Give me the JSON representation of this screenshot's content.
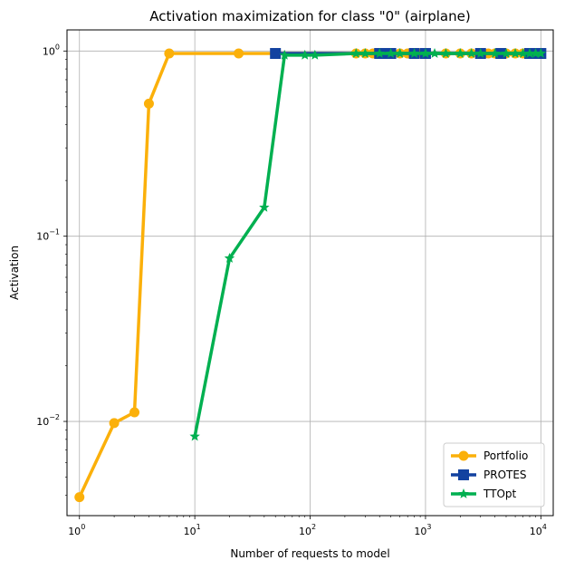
{
  "chart_data": {
    "type": "line",
    "title": "Activation maximization for class \"0\" (airplane)",
    "xlabel": "Number of requests to model",
    "ylabel": "Activation",
    "xscale": "log",
    "yscale": "log",
    "xlim": [
      0.78,
      12800
    ],
    "ylim": [
      0.0031,
      1.3
    ],
    "grid": true,
    "legend_position": "bottom-right",
    "x_ticks": [
      {
        "value": 1,
        "base": "10",
        "exp": "0"
      },
      {
        "value": 10,
        "base": "10",
        "exp": "1"
      },
      {
        "value": 100,
        "base": "10",
        "exp": "2"
      },
      {
        "value": 1000,
        "base": "10",
        "exp": "3"
      },
      {
        "value": 10000,
        "base": "10",
        "exp": "4"
      }
    ],
    "y_ticks": [
      {
        "value": 0.01,
        "base": "10",
        "exp": "−2"
      },
      {
        "value": 0.1,
        "base": "10",
        "exp": "−1"
      },
      {
        "value": 1,
        "base": "10",
        "exp": "0"
      }
    ],
    "series": [
      {
        "name": "Portfolio",
        "color": "#FBB00A",
        "marker": "circle",
        "x": [
          1,
          2,
          3,
          4,
          6,
          24,
          250,
          300,
          350,
          400,
          450,
          500,
          600,
          700,
          800,
          900,
          1000,
          1500,
          2000,
          2500,
          3000,
          3500,
          4000,
          5000,
          6000,
          7000,
          8000,
          9000,
          10000
        ],
        "y": [
          0.0039,
          0.0098,
          0.0112,
          0.52,
          0.97,
          0.97,
          0.97,
          0.97,
          0.97,
          0.97,
          0.97,
          0.97,
          0.97,
          0.97,
          0.97,
          0.97,
          0.97,
          0.97,
          0.97,
          0.97,
          0.97,
          0.97,
          0.97,
          0.97,
          0.97,
          0.97,
          0.97,
          0.97,
          0.97
        ]
      },
      {
        "name": "PROTES",
        "color": "#1342A0",
        "marker": "square",
        "x": [
          50,
          400,
          450,
          500,
          800,
          1000,
          3000,
          4500,
          8000,
          9000,
          10000
        ],
        "y": [
          0.97,
          0.97,
          0.97,
          0.97,
          0.97,
          0.97,
          0.97,
          0.97,
          0.97,
          0.97,
          0.97
        ]
      },
      {
        "name": "TTOpt",
        "color": "#00B050",
        "marker": "star",
        "x": [
          10,
          20,
          40,
          60,
          90,
          110,
          250,
          300,
          400,
          500,
          600,
          800,
          1000,
          1200,
          1500,
          2000,
          2500,
          3000,
          4000,
          5000,
          6000,
          7000,
          8000,
          9000,
          10000
        ],
        "y": [
          0.0083,
          0.076,
          0.143,
          0.95,
          0.95,
          0.95,
          0.97,
          0.97,
          0.97,
          0.97,
          0.97,
          0.97,
          0.97,
          0.97,
          0.97,
          0.97,
          0.97,
          0.97,
          0.97,
          0.97,
          0.97,
          0.97,
          0.97,
          0.97,
          0.97
        ]
      }
    ]
  }
}
